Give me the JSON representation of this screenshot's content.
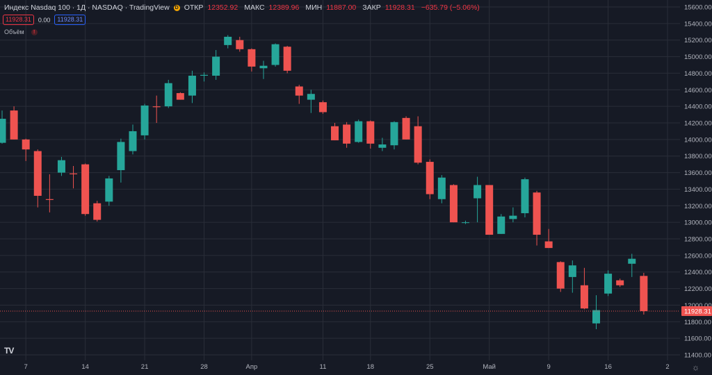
{
  "header": {
    "title": "Индекс Nasdaq 100 · 1Д · NASDAQ · TradingView",
    "badge": "D",
    "open_label": "ОТКР",
    "open_value": "12352.92",
    "high_label": "МАКС",
    "high_value": "12389.96",
    "low_label": "МИН",
    "low_value": "11887.00",
    "close_label": "ЗАКР",
    "close_value": "11928.31",
    "change": "−635.79 (−5.06%)"
  },
  "toolbar": {
    "bid": "11928.31",
    "spread": "0.00",
    "ask": "11928.31"
  },
  "indicator": {
    "label": "Объём",
    "icon": "!"
  },
  "logo_text": "TV",
  "colors": {
    "up": "#26a69a",
    "down": "#ef5350",
    "background": "#161a25",
    "grid": "#2a2e39",
    "last_price": "#ef5350"
  },
  "chart_data": {
    "type": "candlestick",
    "y_range": [
      11400,
      15600
    ],
    "y_ticks": [
      "11400.00",
      "11600.00",
      "11800.00",
      "12000.00",
      "12200.00",
      "12400.00",
      "12600.00",
      "12800.00",
      "13000.00",
      "13200.00",
      "13400.00",
      "13600.00",
      "13800.00",
      "14000.00",
      "14200.00",
      "14400.00",
      "14600.00",
      "14800.00",
      "15000.00",
      "15200.00",
      "15400.00",
      "15600.00"
    ],
    "x_labels": [
      {
        "label": "7",
        "index": 2
      },
      {
        "label": "14",
        "index": 7
      },
      {
        "label": "21",
        "index": 12
      },
      {
        "label": "28",
        "index": 17
      },
      {
        "label": "Апр",
        "index": 21
      },
      {
        "label": "11",
        "index": 27
      },
      {
        "label": "18",
        "index": 31
      },
      {
        "label": "25",
        "index": 36
      },
      {
        "label": "Май",
        "index": 41
      },
      {
        "label": "9",
        "index": 46
      },
      {
        "label": "16",
        "index": 51
      },
      {
        "label": "2",
        "index": 56
      }
    ],
    "last_price": 11928.31,
    "last_price_label": "11928.31",
    "candles": [
      {
        "o": 13960,
        "h": 14350,
        "l": 13950,
        "c": 14250
      },
      {
        "o": 14350,
        "h": 14400,
        "l": 14000,
        "c": 14000
      },
      {
        "o": 14000,
        "h": 14010,
        "l": 13740,
        "c": 13880
      },
      {
        "o": 13860,
        "h": 13880,
        "l": 13180,
        "c": 13320
      },
      {
        "o": 13280,
        "h": 13580,
        "l": 13120,
        "c": 13270
      },
      {
        "o": 13600,
        "h": 13790,
        "l": 13560,
        "c": 13750
      },
      {
        "o": 13590,
        "h": 13680,
        "l": 13410,
        "c": 13580
      },
      {
        "o": 13700,
        "h": 13710,
        "l": 13080,
        "c": 13100
      },
      {
        "o": 13230,
        "h": 13260,
        "l": 13010,
        "c": 13030
      },
      {
        "o": 13250,
        "h": 13560,
        "l": 13200,
        "c": 13530
      },
      {
        "o": 13630,
        "h": 14010,
        "l": 13480,
        "c": 13970
      },
      {
        "o": 13860,
        "h": 14180,
        "l": 13820,
        "c": 14100
      },
      {
        "o": 14050,
        "h": 14430,
        "l": 14000,
        "c": 14410
      },
      {
        "o": 14400,
        "h": 14530,
        "l": 14200,
        "c": 14390
      },
      {
        "o": 14400,
        "h": 14720,
        "l": 14380,
        "c": 14680
      },
      {
        "o": 14560,
        "h": 14570,
        "l": 14480,
        "c": 14480
      },
      {
        "o": 14530,
        "h": 14830,
        "l": 14440,
        "c": 14770
      },
      {
        "o": 14770,
        "h": 14810,
        "l": 14700,
        "c": 14780
      },
      {
        "o": 14770,
        "h": 15080,
        "l": 14720,
        "c": 15000
      },
      {
        "o": 15140,
        "h": 15260,
        "l": 15100,
        "c": 15240
      },
      {
        "o": 15200,
        "h": 15240,
        "l": 15060,
        "c": 15090
      },
      {
        "o": 15090,
        "h": 15100,
        "l": 14820,
        "c": 14880
      },
      {
        "o": 14860,
        "h": 14950,
        "l": 14730,
        "c": 14890
      },
      {
        "o": 14900,
        "h": 15160,
        "l": 14880,
        "c": 15150
      },
      {
        "o": 15120,
        "h": 15130,
        "l": 14800,
        "c": 14830
      },
      {
        "o": 14640,
        "h": 14660,
        "l": 14430,
        "c": 14530
      },
      {
        "o": 14480,
        "h": 14600,
        "l": 14320,
        "c": 14550
      },
      {
        "o": 14450,
        "h": 14470,
        "l": 14310,
        "c": 14330
      },
      {
        "o": 14160,
        "h": 14200,
        "l": 13990,
        "c": 13990
      },
      {
        "o": 14180,
        "h": 14210,
        "l": 13900,
        "c": 13950
      },
      {
        "o": 13970,
        "h": 14240,
        "l": 13960,
        "c": 14220
      },
      {
        "o": 14220,
        "h": 14230,
        "l": 13890,
        "c": 13950
      },
      {
        "o": 13900,
        "h": 14020,
        "l": 13860,
        "c": 13940
      },
      {
        "o": 13930,
        "h": 14220,
        "l": 13880,
        "c": 14210
      },
      {
        "o": 14260,
        "h": 14280,
        "l": 14000,
        "c": 14000
      },
      {
        "o": 14160,
        "h": 14280,
        "l": 13700,
        "c": 13720
      },
      {
        "o": 13730,
        "h": 13760,
        "l": 13280,
        "c": 13340
      },
      {
        "o": 13280,
        "h": 13570,
        "l": 13230,
        "c": 13540
      },
      {
        "o": 13450,
        "h": 13460,
        "l": 13000,
        "c": 13000
      },
      {
        "o": 13000,
        "h": 13020,
        "l": 12980,
        "c": 13000
      },
      {
        "o": 13290,
        "h": 13550,
        "l": 13000,
        "c": 13450
      },
      {
        "o": 13450,
        "h": 13450,
        "l": 12850,
        "c": 12850
      },
      {
        "o": 12860,
        "h": 13100,
        "l": 12860,
        "c": 13070
      },
      {
        "o": 13040,
        "h": 13180,
        "l": 13000,
        "c": 13080
      },
      {
        "o": 13110,
        "h": 13540,
        "l": 13060,
        "c": 13520
      },
      {
        "o": 13360,
        "h": 13380,
        "l": 12720,
        "c": 12850
      },
      {
        "o": 12770,
        "h": 12920,
        "l": 12690,
        "c": 12690
      },
      {
        "o": 12520,
        "h": 12530,
        "l": 12160,
        "c": 12200
      },
      {
        "o": 12340,
        "h": 12540,
        "l": 12150,
        "c": 12480
      },
      {
        "o": 12240,
        "h": 12450,
        "l": 11950,
        "c": 11960
      },
      {
        "o": 11780,
        "h": 12120,
        "l": 11710,
        "c": 11940
      },
      {
        "o": 12140,
        "h": 12420,
        "l": 12110,
        "c": 12380
      },
      {
        "o": 12300,
        "h": 12320,
        "l": 12220,
        "c": 12240
      },
      {
        "o": 12500,
        "h": 12620,
        "l": 12340,
        "c": 12560
      },
      {
        "o": 12352.92,
        "h": 12389.96,
        "l": 11887,
        "c": 11928.31
      }
    ]
  }
}
